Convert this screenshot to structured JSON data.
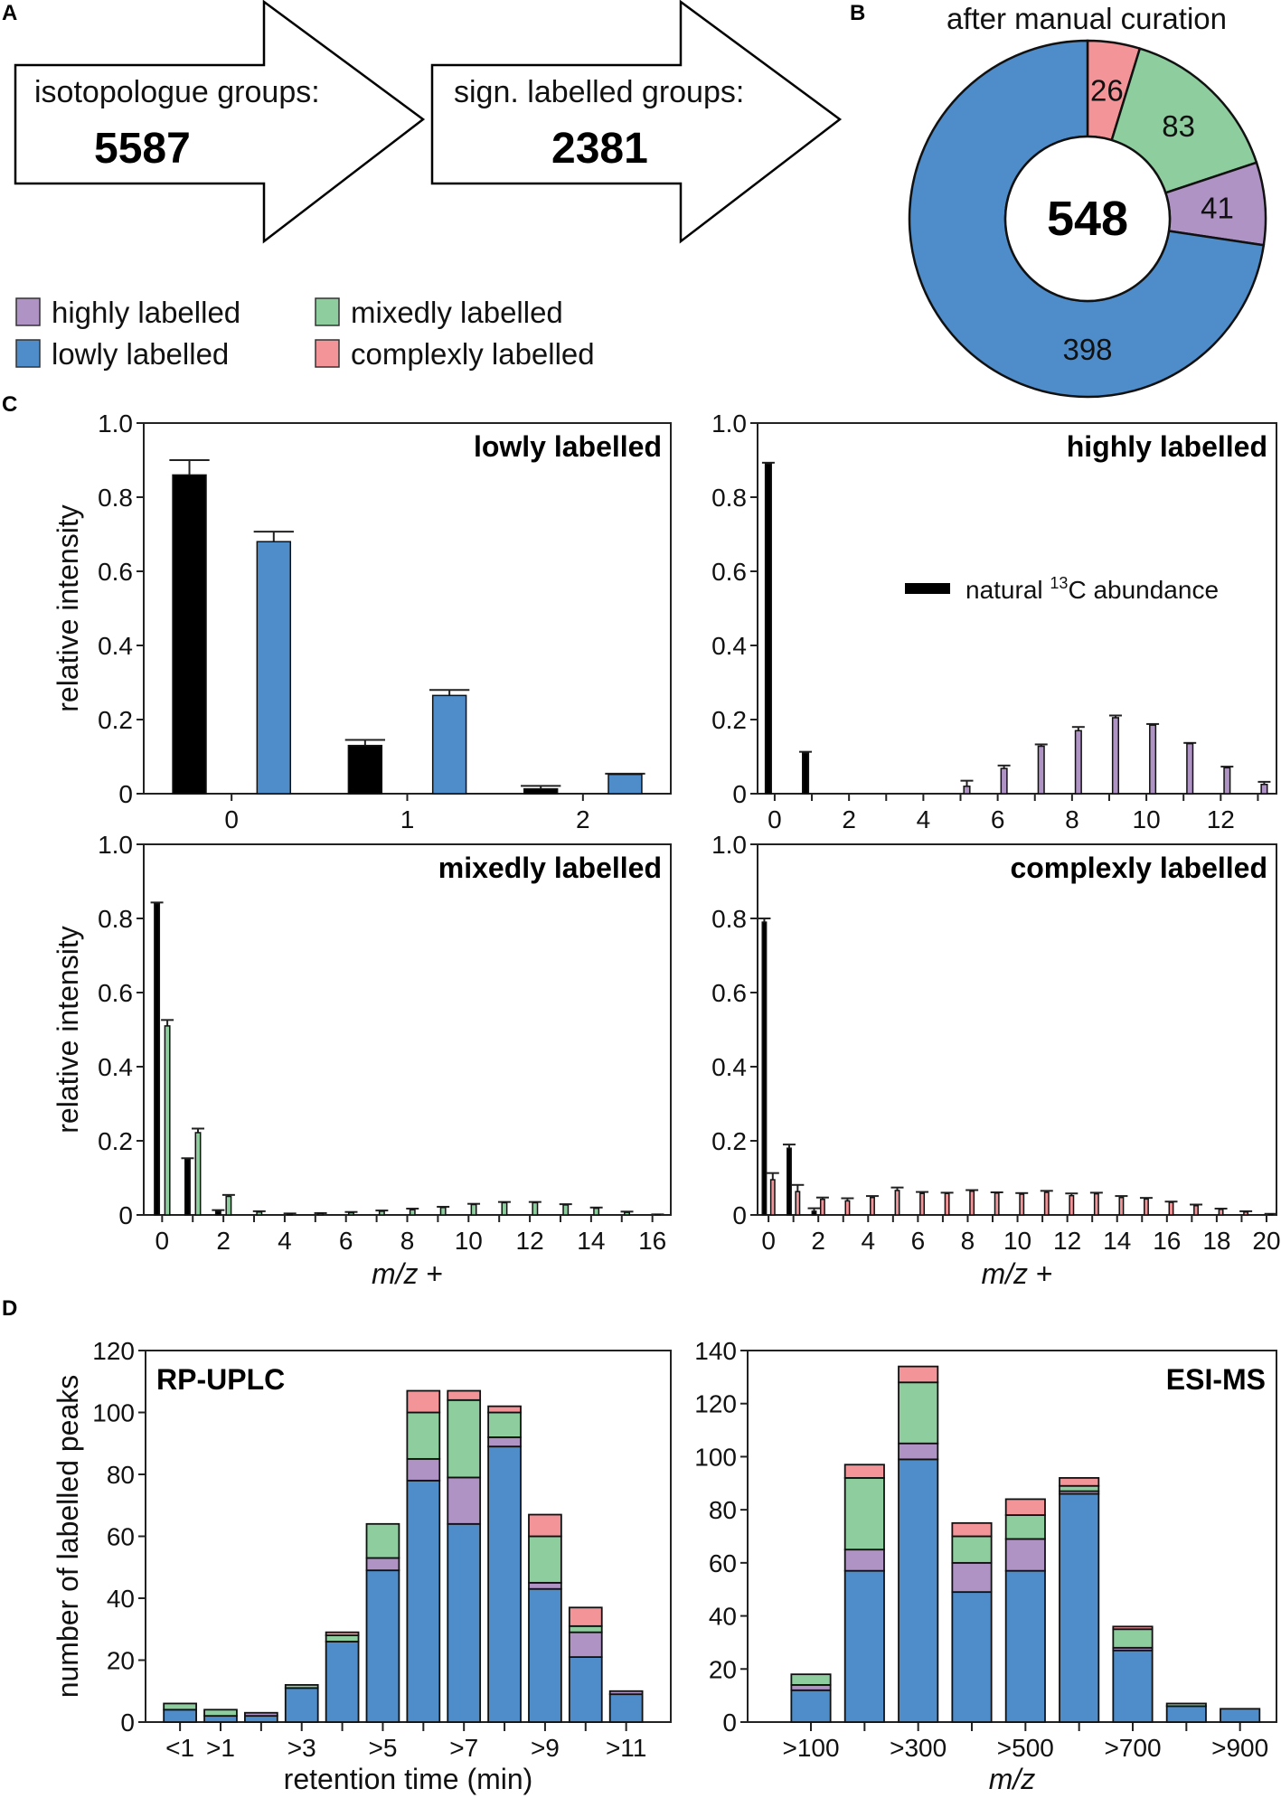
{
  "panel_letters": {
    "a": "A",
    "b": "B",
    "c": "C",
    "d": "D"
  },
  "panel_a": {
    "arrows": [
      {
        "label": "isotopologue groups:",
        "value": "5587"
      },
      {
        "label": "sign. labelled groups:",
        "value": "2381"
      }
    ]
  },
  "colors": {
    "lowly": "#4f8dca",
    "highly": "#ae93c4",
    "mixedly": "#8dcd9e",
    "complexly": "#f39499",
    "natural": "#000000"
  },
  "legend": [
    {
      "key": "highly",
      "label": "highly labelled"
    },
    {
      "key": "mixedly",
      "label": "mixedly labelled"
    },
    {
      "key": "lowly",
      "label": "lowly labelled"
    },
    {
      "key": "complexly",
      "label": "complexly labelled"
    }
  ],
  "chart_data": [
    {
      "id": "B",
      "type": "pie",
      "title": "after manual curation",
      "center_label": "548",
      "slices": [
        {
          "key": "complexly",
          "value": 26
        },
        {
          "key": "mixedly",
          "value": 83
        },
        {
          "key": "highly",
          "value": 41
        },
        {
          "key": "lowly",
          "value": 398
        }
      ]
    },
    {
      "id": "C-lowly",
      "type": "bar",
      "title": "lowly labelled",
      "key": "lowly",
      "ylabel": "relative intensity",
      "xlabel": "",
      "ylim": [
        0,
        1
      ],
      "xlim": [
        -0.5,
        2.5
      ],
      "yticks": [
        "0",
        "0.2",
        "0.4",
        "0.6",
        "0.8",
        "1.0"
      ],
      "xticks": [
        0,
        1,
        2
      ],
      "natural": {
        "x": [
          0,
          1,
          2
        ],
        "values": [
          0.86,
          0.13,
          0.013
        ],
        "err": [
          0.04,
          0.015,
          0.008
        ]
      },
      "labelled": {
        "x": [
          0,
          1,
          2
        ],
        "values": [
          0.68,
          0.265,
          0.052
        ],
        "err": [
          0.027,
          0.015,
          0.002
        ]
      }
    },
    {
      "id": "C-highly",
      "type": "bar",
      "title": "highly labelled",
      "key": "highly",
      "ylabel": "",
      "xlabel": "",
      "ylim": [
        0,
        1
      ],
      "xlim": [
        -0.46,
        13.5
      ],
      "yticks": [
        "0",
        "0.2",
        "0.4",
        "0.6",
        "0.8",
        "1.0"
      ],
      "xticks": [
        0,
        2,
        4,
        6,
        8,
        10,
        12
      ],
      "legend": {
        "prefix": "natural ",
        "sup": "13",
        "suffix": "C abundance"
      },
      "natural": {
        "x": [
          0,
          1
        ],
        "values": [
          0.89,
          0.11
        ],
        "err": [
          0.003,
          0.003
        ]
      },
      "labelled": {
        "x": [
          5,
          6,
          7,
          8,
          9,
          10,
          11,
          12,
          13
        ],
        "values": [
          0.02,
          0.068,
          0.128,
          0.17,
          0.205,
          0.185,
          0.135,
          0.07,
          0.025
        ],
        "err": [
          0.015,
          0.008,
          0.005,
          0.01,
          0.006,
          0.003,
          0.002,
          0.003,
          0.007
        ]
      }
    },
    {
      "id": "C-mixedly",
      "type": "bar",
      "title": "mixedly labelled",
      "key": "mixedly",
      "ylabel": "relative intensity",
      "xlabel": "m/z +",
      "ylim": [
        0,
        1
      ],
      "xlim": [
        -0.6,
        16.6
      ],
      "yticks": [
        "0",
        "0.2",
        "0.4",
        "0.6",
        "0.8",
        "1.0"
      ],
      "xticks": [
        0,
        2,
        4,
        6,
        8,
        10,
        12,
        14,
        16
      ],
      "natural": {
        "x": [
          0,
          1,
          2
        ],
        "values": [
          0.84,
          0.15,
          0.01
        ],
        "err": [
          0.003,
          0.003,
          0.003
        ]
      },
      "labelled": {
        "x": [
          0,
          1,
          2,
          3,
          4,
          5,
          6,
          7,
          8,
          9,
          10,
          11,
          12,
          13,
          14,
          15,
          16
        ],
        "values": [
          0.51,
          0.222,
          0.05,
          0.008,
          0.003,
          0.004,
          0.006,
          0.01,
          0.014,
          0.02,
          0.028,
          0.033,
          0.033,
          0.027,
          0.018,
          0.007,
          0.001
        ],
        "err": [
          0.016,
          0.011,
          0.004,
          0.002,
          0.001,
          0.001,
          0.002,
          0.002,
          0.003,
          0.002,
          0.002,
          0.002,
          0.002,
          0.002,
          0.002,
          0.002,
          0.0005
        ]
      }
    },
    {
      "id": "C-complexly",
      "type": "bar",
      "title": "complexly labelled",
      "key": "complexly",
      "ylabel": "",
      "xlabel": "m/z +",
      "ylim": [
        0,
        1
      ],
      "xlim": [
        -0.44,
        20.4
      ],
      "yticks": [
        "0",
        "0.2",
        "0.4",
        "0.6",
        "0.8",
        "1.0"
      ],
      "xticks": [
        0,
        2,
        4,
        6,
        8,
        10,
        12,
        14,
        16,
        18,
        20
      ],
      "natural": {
        "x": [
          0,
          1,
          2
        ],
        "values": [
          0.79,
          0.18,
          0.01
        ],
        "err": [
          0.01,
          0.01,
          0.008
        ]
      },
      "labelled": {
        "x": [
          0,
          1,
          2,
          3,
          4,
          5,
          6,
          7,
          8,
          9,
          10,
          11,
          12,
          13,
          14,
          15,
          16,
          17,
          18,
          19,
          20
        ],
        "values": [
          0.095,
          0.063,
          0.042,
          0.038,
          0.047,
          0.066,
          0.058,
          0.058,
          0.064,
          0.059,
          0.056,
          0.061,
          0.052,
          0.057,
          0.047,
          0.043,
          0.034,
          0.025,
          0.015,
          0.008,
          0.002
        ],
        "err": [
          0.018,
          0.018,
          0.005,
          0.007,
          0.004,
          0.008,
          0.004,
          0.002,
          0.003,
          0.002,
          0.003,
          0.004,
          0.006,
          0.003,
          0.004,
          0.003,
          0.002,
          0.003,
          0.002,
          0.002,
          0.001
        ]
      }
    },
    {
      "id": "D-rp",
      "type": "bar",
      "stacked": true,
      "title": "RP-UPLC",
      "ylabel": "number of labelled peaks",
      "xlabel": "retention time (min)",
      "ylim": [
        0,
        120
      ],
      "yticks": [
        0,
        20,
        40,
        60,
        80,
        100,
        120
      ],
      "xlim": [
        -0.85,
        12.1
      ],
      "categories": [
        "<1",
        ">1",
        "",
        ">3",
        "",
        ">5",
        "",
        ">7",
        "",
        ">9",
        "",
        ">11"
      ],
      "series": [
        {
          "key": "lowly",
          "name": "lowly labelled",
          "values": [
            4,
            2,
            2,
            11,
            26,
            49,
            78,
            64,
            89,
            43,
            21,
            9
          ]
        },
        {
          "key": "highly",
          "name": "highly labelled",
          "values": [
            0,
            0,
            1,
            0,
            0,
            4,
            7,
            15,
            3,
            2,
            8,
            1
          ]
        },
        {
          "key": "mixedly",
          "name": "mixedly labelled",
          "values": [
            2,
            2,
            0,
            1,
            2,
            11,
            15,
            25,
            8,
            15,
            2,
            0
          ]
        },
        {
          "key": "complexly",
          "name": "complexly labelled",
          "values": [
            0,
            0,
            0,
            0,
            1,
            0,
            7,
            3,
            2,
            7,
            6,
            0
          ]
        }
      ]
    },
    {
      "id": "D-esi",
      "type": "bar",
      "stacked": true,
      "title": "ESI-MS",
      "ylabel": "",
      "xlabel": "m/z",
      "ylim": [
        0,
        140
      ],
      "yticks": [
        0,
        20,
        40,
        60,
        80,
        100,
        120,
        140
      ],
      "xlim": [
        -1.18,
        8.68
      ],
      "categories": [
        ">100",
        "",
        ">300",
        "",
        ">500",
        "",
        ">700",
        "",
        ">900"
      ],
      "series": [
        {
          "key": "lowly",
          "name": "lowly labelled",
          "values": [
            12,
            57,
            99,
            49,
            57,
            86,
            27,
            6,
            5
          ]
        },
        {
          "key": "highly",
          "name": "highly labelled",
          "values": [
            2,
            8,
            6,
            11,
            12,
            1,
            1,
            0,
            0
          ]
        },
        {
          "key": "mixedly",
          "name": "mixedly labelled",
          "values": [
            4,
            27,
            23,
            10,
            9,
            2,
            7,
            1,
            0
          ]
        },
        {
          "key": "complexly",
          "name": "complexly labelled",
          "values": [
            0,
            5,
            6,
            5,
            6,
            3,
            1,
            0,
            0
          ]
        }
      ]
    }
  ]
}
